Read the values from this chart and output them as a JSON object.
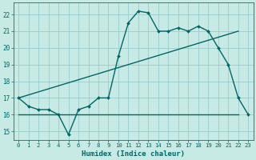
{
  "xlabel": "Humidex (Indice chaleur)",
  "bg_color": "#c8eae4",
  "grid_color": "#99cccc",
  "line_color": "#006666",
  "xlim": [
    -0.5,
    23.5
  ],
  "ylim": [
    14.5,
    22.7
  ],
  "xticks": [
    0,
    1,
    2,
    3,
    4,
    5,
    6,
    7,
    8,
    9,
    10,
    11,
    12,
    13,
    14,
    15,
    16,
    17,
    18,
    19,
    20,
    21,
    22,
    23
  ],
  "yticks": [
    15,
    16,
    17,
    18,
    19,
    20,
    21,
    22
  ],
  "line1_x": [
    0,
    1,
    2,
    3,
    4,
    5,
    6,
    7,
    8,
    9,
    10,
    11,
    12,
    13,
    14,
    15,
    16,
    17,
    18,
    19,
    20,
    21,
    22,
    23
  ],
  "line1_y": [
    17.0,
    16.5,
    16.3,
    16.3,
    16.0,
    14.8,
    16.3,
    16.5,
    17.0,
    17.0,
    19.5,
    21.5,
    22.2,
    22.1,
    21.0,
    21.0,
    21.2,
    21.0,
    21.3,
    21.0,
    20.0,
    19.0,
    17.0,
    16.0
  ],
  "line2_x": [
    0,
    22
  ],
  "line2_y": [
    16.0,
    16.0
  ],
  "line3_x": [
    0,
    22
  ],
  "line3_y": [
    17.0,
    21.0
  ]
}
